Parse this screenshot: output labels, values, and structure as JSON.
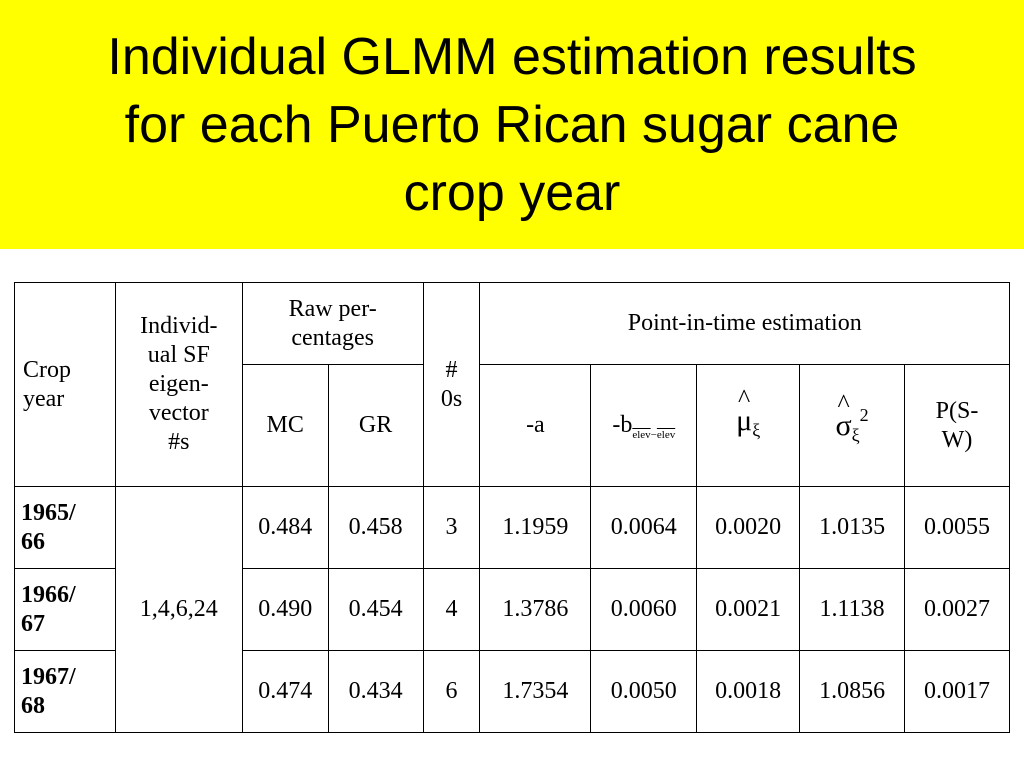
{
  "title": {
    "line1": "Individual GLMM estimation results",
    "line2": "for each Puerto Rican sugar cane",
    "line3": "crop year"
  },
  "table": {
    "headers": {
      "crop_year": {
        "line1": "Crop",
        "line2": "year"
      },
      "eigenvector": {
        "line1": "Individ-",
        "line2": "ual SF",
        "line3": "eigen-",
        "line4": "vector",
        "line5": "#s"
      },
      "raw_percentages": {
        "line1": "Raw per-",
        "line2": "centages"
      },
      "zeros": {
        "line1": "#",
        "line2": "0s"
      },
      "point_in_time": "Point-in-time estimation",
      "mc": "MC",
      "gr": "GR",
      "a": "-a",
      "b": {
        "prefix": "-b",
        "sub_1": "elev",
        "sub_op": "−",
        "sub_2": "elev"
      },
      "mu": {
        "symbol": "μ",
        "hat": "^",
        "sub": "ξ"
      },
      "sigma": {
        "symbol": "σ",
        "hat": "^",
        "sub": "ξ",
        "sup": "2"
      },
      "psw": {
        "line1": "P(S-",
        "line2": "W)"
      }
    },
    "eigenvector_value": "1,4,6,24",
    "rows": [
      {
        "year_line1": "1965/",
        "year_line2": "66",
        "mc": "0.484",
        "gr": "0.458",
        "zeros": "3",
        "a": "1.1959",
        "b": "0.0064",
        "mu": "0.0020",
        "sigma2": "1.0135",
        "psw": "0.0055"
      },
      {
        "year_line1": "1966/",
        "year_line2": "67",
        "mc": "0.490",
        "gr": "0.454",
        "zeros": "4",
        "a": "1.3786",
        "b": "0.0060",
        "mu": "0.0021",
        "sigma2": "1.1138",
        "psw": "0.0027"
      },
      {
        "year_line1": "1967/",
        "year_line2": "68",
        "mc": "0.474",
        "gr": "0.434",
        "zeros": "6",
        "a": "1.7354",
        "b": "0.0050",
        "mu": "0.0018",
        "sigma2": "1.0856",
        "psw": "0.0017"
      }
    ]
  }
}
